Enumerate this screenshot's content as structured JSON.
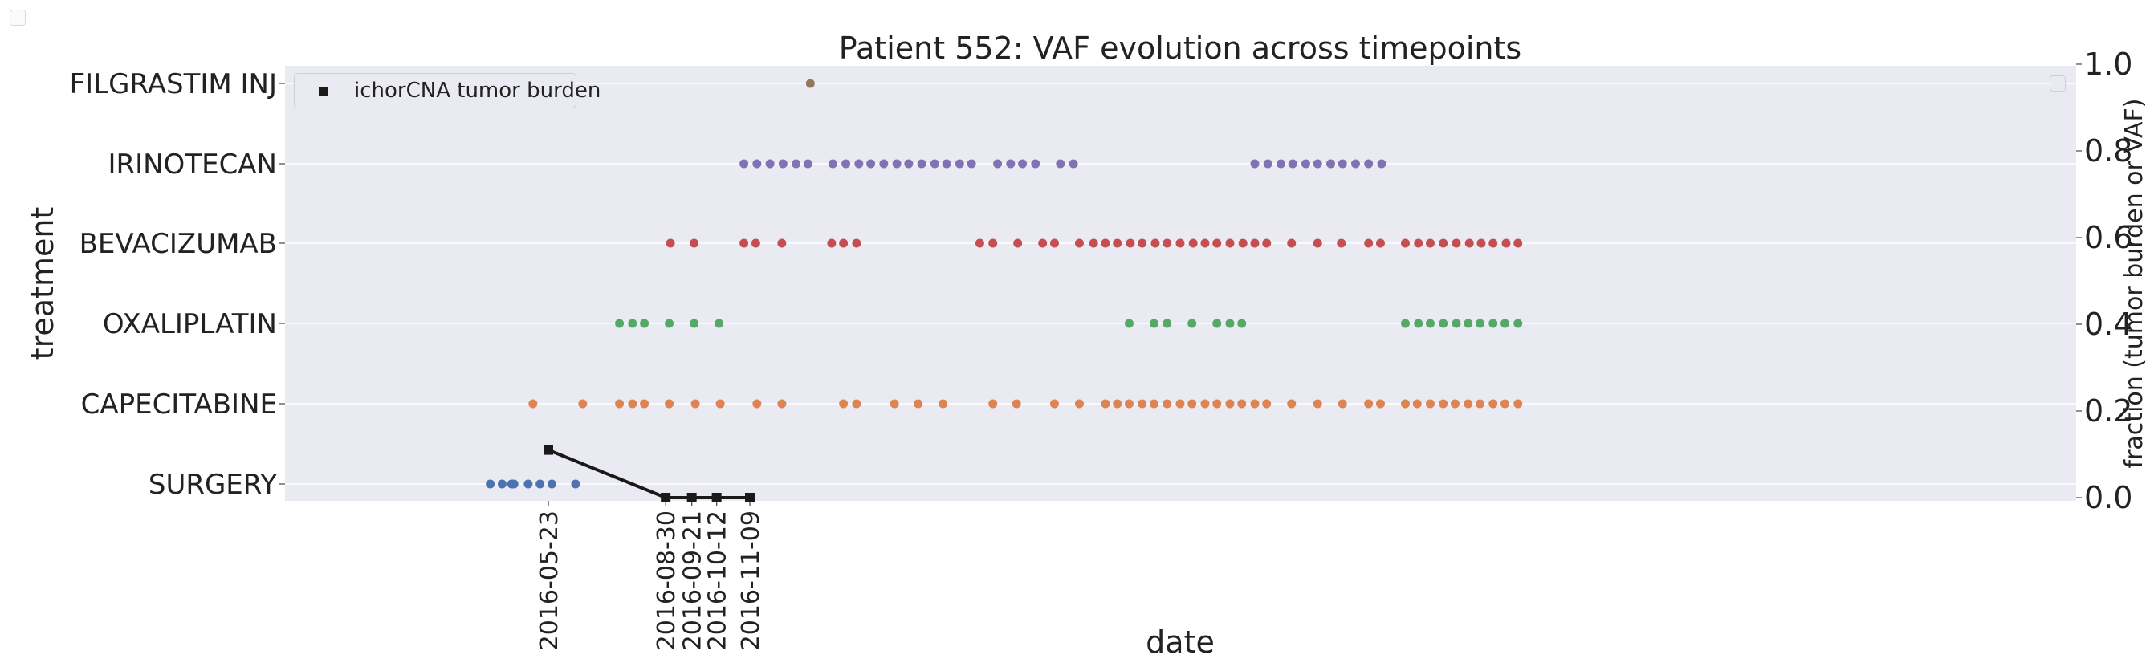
{
  "chart_data": {
    "type": "scatter",
    "title": "Patient 552: VAF evolution across timepoints",
    "xlabel": "date",
    "ylabel": "treatment",
    "ylabel_right": "fraction (tumor burden or VAF)",
    "categories": [
      "SURGERY",
      "CAPECITABINE",
      "OXALIPLATIN",
      "BEVACIZUMAB",
      "IRINOTECAN",
      "FILGRASTIM INJ"
    ],
    "x_tick_labels": [
      "2016-05-23",
      "2016-08-30",
      "2016-09-21",
      "2016-10-12",
      "2016-11-09"
    ],
    "y2lim": [
      0,
      1
    ],
    "y2_ticks": [
      "0.0",
      "0.2",
      "0.4",
      "0.6",
      "0.8",
      "1.0"
    ],
    "grid": true,
    "legend_position": "top-left",
    "series": [
      {
        "name": "SURGERY",
        "category": "SURGERY",
        "color": "#4c72b0",
        "x": [
          "2016-04-04",
          "2016-04-14",
          "2016-04-22",
          "2016-04-24",
          "2016-05-06",
          "2016-05-16",
          "2016-05-26",
          "2016-06-15"
        ]
      },
      {
        "name": "CAPECITABINE",
        "category": "CAPECITABINE",
        "color": "#dd8452",
        "x": [
          "2016-05-10",
          "2016-06-21",
          "2016-07-22",
          "2016-08-02",
          "2016-08-12",
          "2016-09-02",
          "2016-09-24",
          "2016-10-15",
          "2016-11-15",
          "2016-12-06",
          "2017-01-27",
          "2017-02-07",
          "2017-03-11",
          "2017-03-31",
          "2017-04-21",
          "2017-06-02",
          "2017-06-22",
          "2017-07-24",
          "2017-08-14",
          "2017-09-05",
          "2017-09-15",
          "2017-09-25",
          "2017-10-06",
          "2017-10-16",
          "2017-10-27",
          "2017-11-07",
          "2017-11-17",
          "2017-11-28",
          "2017-12-08",
          "2017-12-19",
          "2017-12-29",
          "2018-01-09",
          "2018-01-19",
          "2018-02-09",
          "2018-03-03",
          "2018-03-24",
          "2018-04-15",
          "2018-04-25",
          "2018-05-16",
          "2018-05-26",
          "2018-06-06",
          "2018-06-17",
          "2018-06-27",
          "2018-07-08",
          "2018-07-18",
          "2018-07-29",
          "2018-08-08",
          "2018-08-19"
        ]
      },
      {
        "name": "OXALIPLATIN",
        "category": "OXALIPLATIN",
        "color": "#55a868",
        "x": [
          "2016-07-22",
          "2016-08-02",
          "2016-08-12",
          "2016-09-02",
          "2016-09-23",
          "2016-10-14",
          "2017-09-25",
          "2017-10-16",
          "2017-10-27",
          "2017-11-17",
          "2017-12-08",
          "2017-12-19",
          "2017-12-29",
          "2018-05-16",
          "2018-05-27",
          "2018-06-06",
          "2018-06-17",
          "2018-06-28",
          "2018-07-08",
          "2018-07-18",
          "2018-07-29",
          "2018-08-08",
          "2018-08-19"
        ]
      },
      {
        "name": "BEVACIZUMAB",
        "category": "BEVACIZUMAB",
        "color": "#c44e52",
        "x": [
          "2016-09-03",
          "2016-09-23",
          "2016-11-04",
          "2016-11-14",
          "2016-12-06",
          "2017-01-17",
          "2017-01-27",
          "2017-02-07",
          "2017-05-22",
          "2017-06-02",
          "2017-06-23",
          "2017-07-14",
          "2017-07-24",
          "2017-08-14",
          "2017-08-26",
          "2017-09-05",
          "2017-09-15",
          "2017-09-26",
          "2017-10-06",
          "2017-10-17",
          "2017-10-27",
          "2017-11-07",
          "2017-11-18",
          "2017-11-28",
          "2017-12-08",
          "2017-12-19",
          "2017-12-30",
          "2018-01-09",
          "2018-01-19",
          "2018-02-09",
          "2018-03-03",
          "2018-03-23",
          "2018-04-15",
          "2018-04-25",
          "2018-05-16",
          "2018-05-27",
          "2018-06-06",
          "2018-06-17",
          "2018-06-28",
          "2018-07-09",
          "2018-07-19",
          "2018-07-29",
          "2018-08-09",
          "2018-08-19"
        ]
      },
      {
        "name": "IRINOTECAN",
        "category": "IRINOTECAN",
        "color": "#8172b3",
        "x": [
          "2016-11-04",
          "2016-11-15",
          "2016-11-26",
          "2016-12-07",
          "2016-12-18",
          "2016-12-28",
          "2017-01-18",
          "2017-01-29",
          "2017-02-09",
          "2017-02-19",
          "2017-03-02",
          "2017-03-13",
          "2017-03-23",
          "2017-04-03",
          "2017-04-14",
          "2017-04-24",
          "2017-05-05",
          "2017-05-15",
          "2017-06-06",
          "2017-06-17",
          "2017-06-27",
          "2017-07-08",
          "2017-07-29",
          "2017-08-09",
          "2018-01-09",
          "2018-01-20",
          "2018-01-31",
          "2018-02-10",
          "2018-02-21",
          "2018-03-03",
          "2018-03-14",
          "2018-03-24",
          "2018-04-04",
          "2018-04-15",
          "2018-04-26"
        ]
      },
      {
        "name": "FILGRASTIM INJ",
        "category": "FILGRASTIM INJ",
        "color": "#937860",
        "x": [
          "2016-12-30"
        ]
      }
    ],
    "line_series": [
      {
        "name": "ichorCNA tumor burden",
        "axis": "right",
        "marker": "square",
        "color": "#1a1a1a",
        "x": [
          "2016-05-23",
          "2016-08-30",
          "2016-09-21",
          "2016-10-12",
          "2016-11-09"
        ],
        "y": [
          0.11,
          0.0,
          0.0,
          0.0,
          0.0
        ]
      }
    ]
  }
}
